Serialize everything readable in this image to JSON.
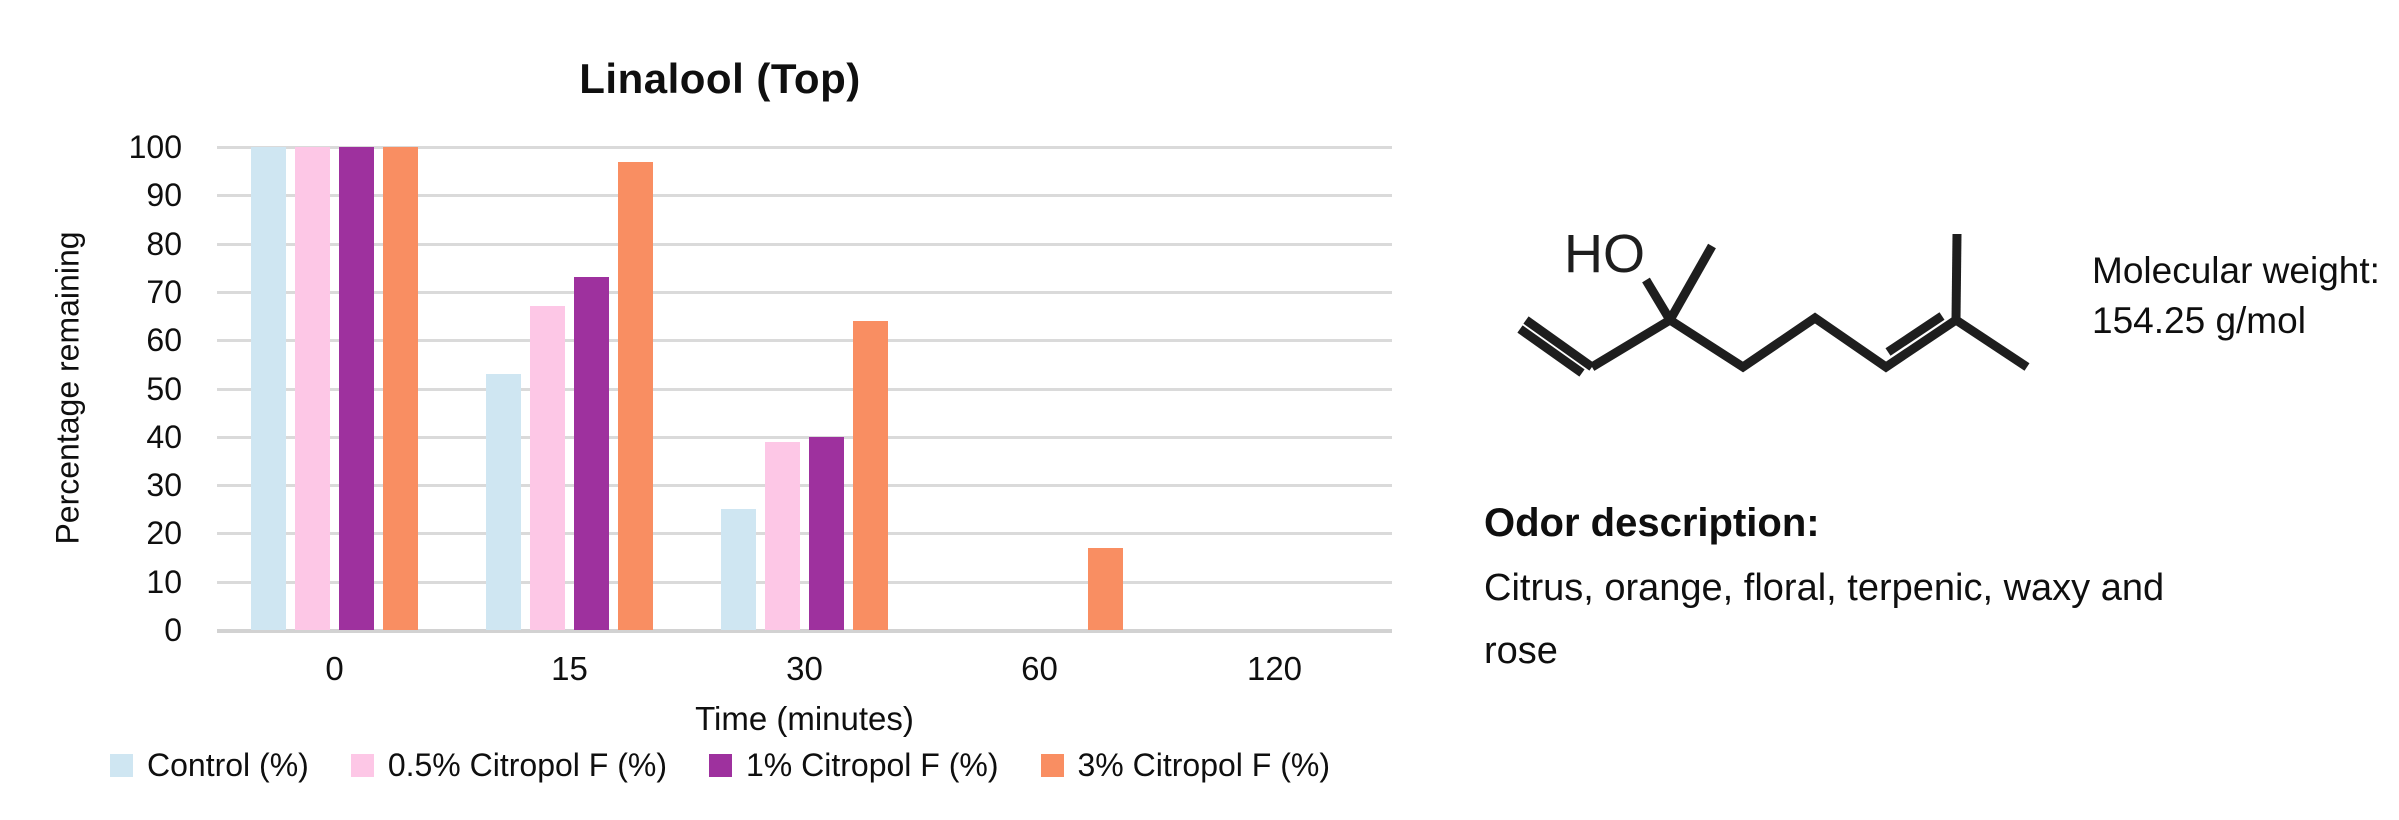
{
  "chart_data": {
    "type": "bar",
    "title": "Linalool (Top)",
    "xlabel": "Time (minutes)",
    "ylabel": "Percentage remaining",
    "ylim": [
      0,
      100
    ],
    "y_ticks": [
      0,
      10,
      20,
      30,
      40,
      50,
      60,
      70,
      80,
      90,
      100
    ],
    "categories": [
      "0",
      "15",
      "30",
      "60",
      "120"
    ],
    "series": [
      {
        "name": "Control (%)",
        "color": "#CFE6F2",
        "values": [
          100,
          53,
          25,
          0,
          0
        ]
      },
      {
        "name": "0.5% Citropol F (%)",
        "color": "#FDC7E6",
        "values": [
          100,
          67,
          39,
          0,
          0
        ]
      },
      {
        "name": "1% Citropol F (%)",
        "color": "#9E319E",
        "values": [
          100,
          73,
          40,
          0,
          0
        ]
      },
      {
        "name": "3% Citropol F (%)",
        "color": "#F98E62",
        "values": [
          100,
          97,
          64,
          17,
          0
        ]
      }
    ],
    "grid": "horizontal",
    "grid_color": "#DADADA",
    "legend_position": "bottom"
  },
  "molecule": {
    "hydroxyl_label": "HO",
    "line_color": "#1e1e1e"
  },
  "info": {
    "molecular_weight_label": "Molecular weight:",
    "molecular_weight_value": "154.25 g/mol",
    "odor_header": "Odor description:",
    "odor_lines": [
      "Citrus, orange, floral, terpenic, waxy and",
      "rose"
    ]
  }
}
